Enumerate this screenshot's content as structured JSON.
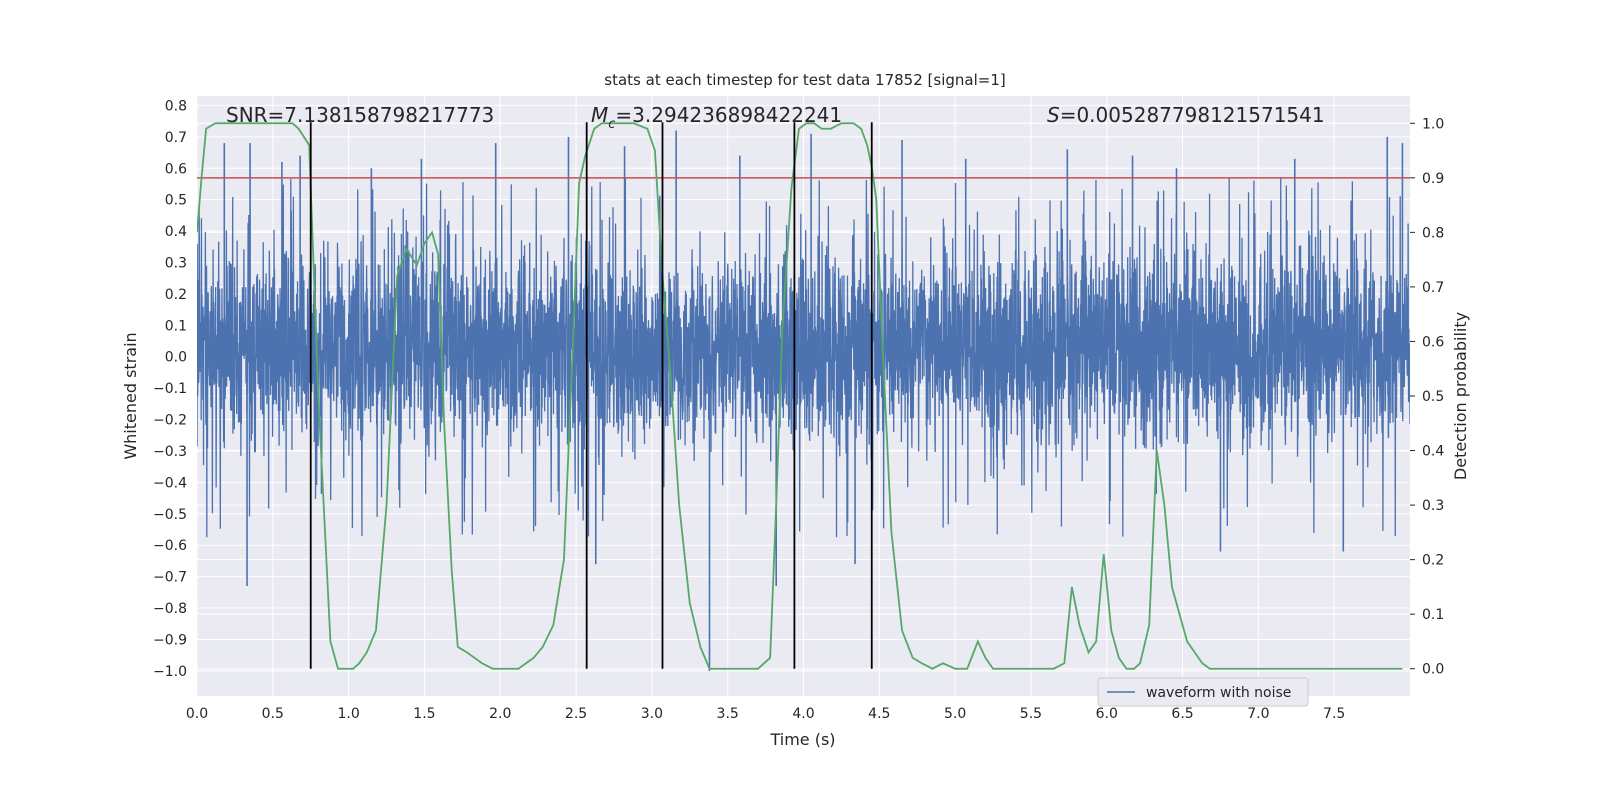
{
  "chart_data": {
    "type": "line",
    "title": "stats at each timestep for test data 17852 [signal=1]",
    "xlabel": "Time (s)",
    "ylabel": "Whitened strain",
    "y2label": "Detection probability",
    "xlim": [
      0.0,
      8.0
    ],
    "ylim": [
      -1.08,
      0.83
    ],
    "y2lim": [
      -0.05,
      1.05
    ],
    "xticks": [
      0.0,
      0.5,
      1.0,
      1.5,
      2.0,
      2.5,
      3.0,
      3.5,
      4.0,
      4.5,
      5.0,
      5.5,
      6.0,
      6.5,
      7.0,
      7.5
    ],
    "xtick_labels": [
      "0.0",
      "0.5",
      "1.0",
      "1.5",
      "2.0",
      "2.5",
      "3.0",
      "3.5",
      "4.0",
      "4.5",
      "5.0",
      "5.5",
      "6.0",
      "6.5",
      "7.0",
      "7.5"
    ],
    "yticks": [
      0.8,
      0.7,
      0.6,
      0.5,
      0.4,
      0.3,
      0.2,
      0.1,
      0.0,
      -0.1,
      -0.2,
      -0.3,
      -0.4,
      -0.5,
      -0.6,
      -0.7,
      -0.8,
      -0.9,
      -1.0
    ],
    "ytick_labels": [
      "0.8",
      "0.7",
      "0.6",
      "0.5",
      "0.4",
      "0.3",
      "0.2",
      "0.1",
      "0.0",
      "−0.1",
      "−0.2",
      "−0.3",
      "−0.4",
      "−0.5",
      "−0.6",
      "−0.7",
      "−0.8",
      "−0.9",
      "−1.0"
    ],
    "y2ticks": [
      1.0,
      0.9,
      0.8,
      0.7,
      0.6,
      0.5,
      0.4,
      0.3,
      0.2,
      0.1,
      0.0
    ],
    "y2tick_labels": [
      "1.0",
      "0.9",
      "0.8",
      "0.7",
      "0.6",
      "0.5",
      "0.4",
      "0.3",
      "0.2",
      "0.1",
      "0.0"
    ],
    "grid": true,
    "annotations": {
      "snr": "SNR=7.138158798217773",
      "mc_symbol": "M",
      "mc_subscript": "c",
      "mc_value": "=3.294236898422241",
      "s_symbol": "S",
      "s_value": "=0.005287798121571541"
    },
    "threshold": {
      "value": 0.9,
      "axis": "right",
      "color": "#c44e52"
    },
    "vlines": [
      0.75,
      2.57,
      3.07,
      3.94,
      4.45
    ],
    "legend": {
      "label": "waveform with noise",
      "location": "lower-right"
    },
    "series": [
      {
        "name": "waveform with noise",
        "axis": "left",
        "color": "#4c72b0",
        "duration": 8.0,
        "typical_range": [
          -0.35,
          0.4
        ],
        "peaks": [
          {
            "x": 0.18,
            "y": 0.68
          },
          {
            "x": 0.35,
            "y": 0.68
          },
          {
            "x": 0.33,
            "y": -0.73
          },
          {
            "x": 0.56,
            "y": 0.62
          },
          {
            "x": 0.68,
            "y": 0.64
          },
          {
            "x": 1.15,
            "y": 0.6
          },
          {
            "x": 1.48,
            "y": 0.63
          },
          {
            "x": 1.97,
            "y": 0.68
          },
          {
            "x": 2.45,
            "y": 0.7
          },
          {
            "x": 2.63,
            "y": -0.66
          },
          {
            "x": 2.82,
            "y": 0.67
          },
          {
            "x": 3.16,
            "y": 0.72
          },
          {
            "x": 3.38,
            "y": -1.0
          },
          {
            "x": 3.58,
            "y": 0.64
          },
          {
            "x": 3.82,
            "y": -0.73
          },
          {
            "x": 4.05,
            "y": 0.71
          },
          {
            "x": 4.34,
            "y": -0.66
          },
          {
            "x": 4.65,
            "y": 0.69
          },
          {
            "x": 5.07,
            "y": 0.63
          },
          {
            "x": 5.74,
            "y": 0.66
          },
          {
            "x": 6.17,
            "y": 0.64
          },
          {
            "x": 6.46,
            "y": 0.6
          },
          {
            "x": 6.75,
            "y": -0.62
          },
          {
            "x": 7.24,
            "y": 0.63
          },
          {
            "x": 7.56,
            "y": -0.62
          },
          {
            "x": 7.85,
            "y": 0.7
          },
          {
            "x": 7.95,
            "y": 0.68
          }
        ]
      },
      {
        "name": "detection probability",
        "axis": "right",
        "color": "#55a868",
        "x": [
          0.0,
          0.03,
          0.06,
          0.12,
          0.25,
          0.5,
          0.63,
          0.67,
          0.74,
          0.8,
          0.88,
          0.93,
          0.97,
          1.03,
          1.07,
          1.12,
          1.18,
          1.25,
          1.32,
          1.38,
          1.45,
          1.5,
          1.55,
          1.59,
          1.63,
          1.68,
          1.72,
          1.78,
          1.83,
          1.88,
          1.95,
          2.05,
          2.12,
          2.17,
          2.22,
          2.28,
          2.35,
          2.42,
          2.48,
          2.52,
          2.56,
          2.62,
          2.67,
          2.75,
          2.88,
          2.97,
          3.02,
          3.07,
          3.12,
          3.18,
          3.25,
          3.32,
          3.38,
          3.45,
          3.5,
          3.6,
          3.7,
          3.78,
          3.82,
          3.86,
          3.92,
          3.97,
          4.02,
          4.07,
          4.12,
          4.18,
          4.25,
          4.33,
          4.38,
          4.42,
          4.45,
          4.48,
          4.52,
          4.58,
          4.65,
          4.72,
          4.78,
          4.85,
          4.92,
          5.0,
          5.08,
          5.15,
          5.2,
          5.25,
          5.3,
          5.36,
          5.45,
          5.55,
          5.65,
          5.72,
          5.77,
          5.82,
          5.88,
          5.93,
          5.98,
          6.03,
          6.08,
          6.13,
          6.18,
          6.22,
          6.28,
          6.33,
          6.38,
          6.43,
          6.48,
          6.53,
          6.58,
          6.63,
          6.68,
          6.73,
          6.78,
          6.85,
          6.95,
          7.1,
          7.2,
          7.3,
          7.4,
          7.5,
          7.6,
          7.7,
          7.8,
          7.95
        ],
        "y": [
          0.8,
          0.9,
          0.99,
          1.0,
          1.0,
          1.0,
          1.0,
          0.99,
          0.96,
          0.5,
          0.05,
          0.0,
          0.0,
          0.0,
          0.01,
          0.03,
          0.07,
          0.3,
          0.72,
          0.77,
          0.74,
          0.78,
          0.8,
          0.76,
          0.45,
          0.18,
          0.04,
          0.03,
          0.02,
          0.01,
          0.0,
          0.0,
          0.0,
          0.01,
          0.02,
          0.04,
          0.08,
          0.2,
          0.6,
          0.89,
          0.94,
          0.99,
          1.0,
          1.0,
          1.0,
          0.99,
          0.95,
          0.72,
          0.55,
          0.3,
          0.12,
          0.04,
          0.0,
          0.0,
          0.0,
          0.0,
          0.0,
          0.02,
          0.3,
          0.62,
          0.88,
          0.99,
          1.0,
          1.0,
          0.99,
          0.99,
          1.0,
          1.0,
          0.99,
          0.96,
          0.92,
          0.86,
          0.6,
          0.25,
          0.07,
          0.02,
          0.01,
          0.0,
          0.01,
          0.0,
          0.0,
          0.05,
          0.02,
          0.0,
          0.0,
          0.0,
          0.0,
          0.0,
          0.0,
          0.01,
          0.15,
          0.08,
          0.03,
          0.05,
          0.21,
          0.07,
          0.02,
          0.0,
          0.0,
          0.01,
          0.08,
          0.4,
          0.3,
          0.15,
          0.1,
          0.05,
          0.03,
          0.01,
          0.0,
          0.0,
          0.0,
          0.0,
          0.0,
          0.0,
          0.0,
          0.0,
          0.0,
          0.0,
          0.0,
          0.0,
          0.0,
          0.0
        ]
      }
    ]
  }
}
